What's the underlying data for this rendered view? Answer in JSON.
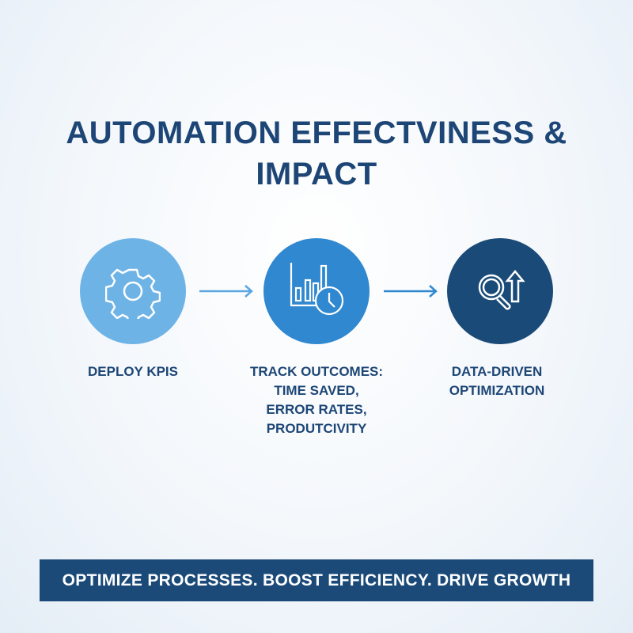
{
  "title": {
    "line1": "AUTOMATION EFFECTVINESS &",
    "line2": "IMPACT"
  },
  "steps": [
    {
      "icon": "gear-icon",
      "color": "#6eb3e6",
      "label": [
        "DEPLOY KPIS"
      ]
    },
    {
      "icon": "chart-clock-icon",
      "color": "#2f88d0",
      "label": [
        "TRACK OUTCOMES:",
        "TIME SAVED,",
        "ERROR RATES,",
        "PRODUTCIVITY"
      ]
    },
    {
      "icon": "magnifier-arrow-up-icon",
      "color": "#194a78",
      "label": [
        "DATA-DRIVEN",
        "OPTIMIZATION"
      ]
    }
  ],
  "banner": {
    "text": "OPTIMIZE PROCESSES. BOOST EFFICIENCY. DRIVE GROWTH"
  }
}
